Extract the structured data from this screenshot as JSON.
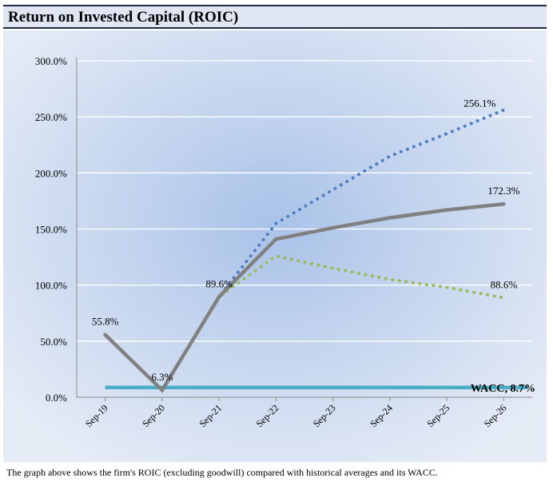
{
  "header": {
    "title": "Return on Invested Capital (ROIC)"
  },
  "footer": {
    "caption": "The graph above shows the firm's ROIC (excluding goodwill) compared with historical averages and its WACC."
  },
  "colors": {
    "background_center": "#a9c2e8",
    "background_edge": "#e6ecf6",
    "actual": "#808080",
    "optimistic": "#4f7dc3",
    "pessimistic": "#9bbb59",
    "wacc": "#4bacc6"
  },
  "chart_data": {
    "type": "line",
    "categories": [
      "Sep-19",
      "Sep-20",
      "Sep-21",
      "Sep-22",
      "Sep-23",
      "Sep-24",
      "Sep-25",
      "Sep-26"
    ],
    "ylim": [
      0,
      300
    ],
    "yticks": [
      "0.0%",
      "50.0%",
      "100.0%",
      "150.0%",
      "200.0%",
      "250.0%",
      "300.0%"
    ],
    "grid": true,
    "series": [
      {
        "key": "upper",
        "style": "dotted",
        "values": [
          55.8,
          6.3,
          89.6,
          155,
          185,
          215,
          235,
          256.1
        ]
      },
      {
        "key": "lower",
        "style": "dotted",
        "values": [
          55.8,
          6.3,
          89.6,
          126,
          115,
          105,
          98,
          88.6
        ]
      },
      {
        "key": "base",
        "style": "solid",
        "values": [
          55.8,
          6.3,
          89.6,
          141,
          151,
          160,
          167,
          172.3
        ]
      }
    ],
    "wacc": {
      "value": 8.7,
      "label": "WACC, 8.7%"
    },
    "data_labels": [
      {
        "text": "55.8%",
        "x_index": 0,
        "value": 55.8,
        "pos": "above"
      },
      {
        "text": "6.3%",
        "x_index": 1,
        "value": 6.3,
        "pos": "above"
      },
      {
        "text": "89.6%",
        "x_index": 2,
        "value": 89.6,
        "pos": "above"
      },
      {
        "text": "256.1%",
        "x_index": 7,
        "value": 256.1,
        "pos": "above-left"
      },
      {
        "text": "172.3%",
        "x_index": 7,
        "value": 172.3,
        "pos": "above"
      },
      {
        "text": "88.6%",
        "x_index": 7,
        "value": 88.6,
        "pos": "above"
      }
    ]
  }
}
